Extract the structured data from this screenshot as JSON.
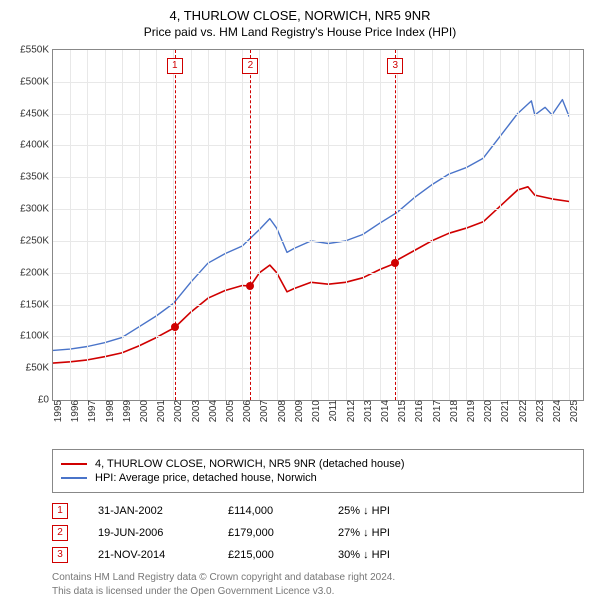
{
  "title": "4, THURLOW CLOSE, NORWICH, NR5 9NR",
  "subtitle": "Price paid vs. HM Land Registry's House Price Index (HPI)",
  "chart": {
    "type": "line",
    "background_color": "#ffffff",
    "grid_color": "#e8e8e8",
    "axis_color": "#888888",
    "x": {
      "min": 1995,
      "max": 2025.8,
      "ticks": [
        1995,
        1996,
        1997,
        1998,
        1999,
        2000,
        2001,
        2002,
        2003,
        2004,
        2005,
        2006,
        2007,
        2008,
        2009,
        2010,
        2011,
        2012,
        2013,
        2014,
        2015,
        2016,
        2017,
        2018,
        2019,
        2020,
        2021,
        2022,
        2023,
        2024,
        2025
      ]
    },
    "y": {
      "min": 0,
      "max": 550000,
      "tick_step": 50000,
      "tick_labels": [
        "£0",
        "£50K",
        "£100K",
        "£150K",
        "£200K",
        "£250K",
        "£300K",
        "£350K",
        "£400K",
        "£450K",
        "£500K",
        "£550K"
      ]
    },
    "series": [
      {
        "id": "price_paid",
        "label": "4, THURLOW CLOSE, NORWICH, NR5 9NR (detached house)",
        "color": "#d00000",
        "line_width": 1.6,
        "points": [
          [
            1995,
            58000
          ],
          [
            1996,
            60000
          ],
          [
            1997,
            63000
          ],
          [
            1998,
            68000
          ],
          [
            1999,
            74000
          ],
          [
            2000,
            85000
          ],
          [
            2001,
            98000
          ],
          [
            2002.08,
            114000
          ],
          [
            2003,
            138000
          ],
          [
            2004,
            160000
          ],
          [
            2005,
            172000
          ],
          [
            2006,
            180000
          ],
          [
            2006.47,
            179000
          ],
          [
            2007,
            200000
          ],
          [
            2007.6,
            212000
          ],
          [
            2008,
            200000
          ],
          [
            2008.6,
            170000
          ],
          [
            2009,
            175000
          ],
          [
            2010,
            185000
          ],
          [
            2011,
            182000
          ],
          [
            2012,
            185000
          ],
          [
            2013,
            192000
          ],
          [
            2014,
            205000
          ],
          [
            2014.89,
            215000
          ],
          [
            2015,
            220000
          ],
          [
            2016,
            235000
          ],
          [
            2017,
            250000
          ],
          [
            2018,
            262000
          ],
          [
            2019,
            270000
          ],
          [
            2020,
            280000
          ],
          [
            2021,
            305000
          ],
          [
            2022,
            330000
          ],
          [
            2022.6,
            335000
          ],
          [
            2023,
            322000
          ],
          [
            2024,
            316000
          ],
          [
            2025,
            312000
          ]
        ]
      },
      {
        "id": "hpi",
        "label": "HPI: Average price, detached house, Norwich",
        "color": "#4a74c9",
        "line_width": 1.4,
        "points": [
          [
            1995,
            78000
          ],
          [
            1996,
            80000
          ],
          [
            1997,
            84000
          ],
          [
            1998,
            90000
          ],
          [
            1999,
            98000
          ],
          [
            2000,
            115000
          ],
          [
            2001,
            132000
          ],
          [
            2002,
            152000
          ],
          [
            2003,
            185000
          ],
          [
            2004,
            215000
          ],
          [
            2005,
            230000
          ],
          [
            2006,
            242000
          ],
          [
            2007,
            268000
          ],
          [
            2007.6,
            285000
          ],
          [
            2008,
            270000
          ],
          [
            2008.6,
            232000
          ],
          [
            2009,
            238000
          ],
          [
            2010,
            250000
          ],
          [
            2011,
            246000
          ],
          [
            2012,
            250000
          ],
          [
            2013,
            260000
          ],
          [
            2014,
            278000
          ],
          [
            2015,
            295000
          ],
          [
            2016,
            318000
          ],
          [
            2017,
            338000
          ],
          [
            2018,
            355000
          ],
          [
            2019,
            365000
          ],
          [
            2020,
            380000
          ],
          [
            2021,
            415000
          ],
          [
            2022,
            450000
          ],
          [
            2022.8,
            470000
          ],
          [
            2023,
            448000
          ],
          [
            2023.6,
            460000
          ],
          [
            2024,
            448000
          ],
          [
            2024.6,
            472000
          ],
          [
            2025,
            445000
          ]
        ]
      }
    ],
    "marker_style": {
      "box_border": "#d00000",
      "line_style": "dashed",
      "dot_color": "#d00000"
    },
    "markers": [
      {
        "n": "1",
        "x": 2002.08,
        "y": 114000
      },
      {
        "n": "2",
        "x": 2006.47,
        "y": 179000
      },
      {
        "n": "3",
        "x": 2014.89,
        "y": 215000
      }
    ]
  },
  "legend": [
    {
      "color": "#d00000",
      "label": "4, THURLOW CLOSE, NORWICH, NR5 9NR (detached house)"
    },
    {
      "color": "#4a74c9",
      "label": "HPI: Average price, detached house, Norwich"
    }
  ],
  "transactions": [
    {
      "n": "1",
      "date": "31-JAN-2002",
      "price": "£114,000",
      "diff": "25% ↓ HPI"
    },
    {
      "n": "2",
      "date": "19-JUN-2006",
      "price": "£179,000",
      "diff": "27% ↓ HPI"
    },
    {
      "n": "3",
      "date": "21-NOV-2014",
      "price": "£215,000",
      "diff": "30% ↓ HPI"
    }
  ],
  "footer": {
    "line1": "Contains HM Land Registry data © Crown copyright and database right 2024.",
    "line2": "This data is licensed under the Open Government Licence v3.0."
  }
}
